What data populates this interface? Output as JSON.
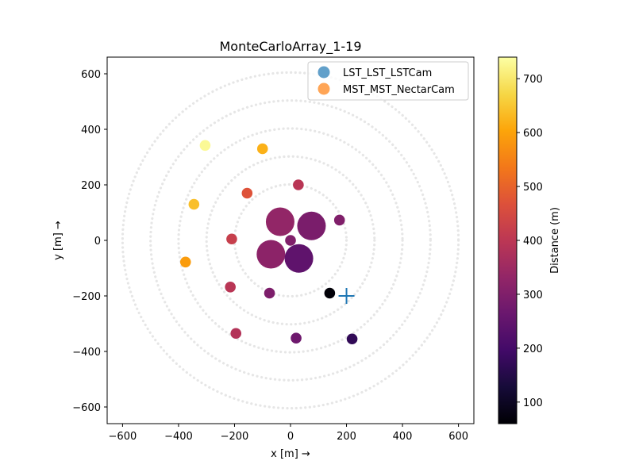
{
  "chart_data": {
    "type": "scatter",
    "title": "MonteCarloArray_1-19",
    "xlabel": "x [m]  →",
    "ylabel": "y [m]  →",
    "xlim": [
      -655,
      655
    ],
    "ylim": [
      -660,
      660
    ],
    "xticks": [
      -600,
      -400,
      -200,
      0,
      200,
      400,
      600
    ],
    "yticks": [
      -600,
      -400,
      -200,
      0,
      200,
      400,
      600
    ],
    "xtick_labels": [
      "−600",
      "−400",
      "−200",
      "0",
      "200",
      "400",
      "600"
    ],
    "ytick_labels": [
      "−600",
      "−400",
      "−200",
      "0",
      "200",
      "400",
      "600"
    ],
    "grid": false,
    "legend_position": "top-right",
    "legend": [
      {
        "label": "LST_LST_LSTCam",
        "color": "#1f77b4"
      },
      {
        "label": "MST_MST_NectarCam",
        "color": "#ff7f0e"
      }
    ],
    "reference_circles_radii": [
      200,
      300,
      400,
      500,
      600
    ],
    "marker": {
      "x": 200,
      "y": -200,
      "color": "#1f77b4"
    },
    "colorbar": {
      "label": "Distance (m)",
      "colormap": "inferno",
      "range": [
        60,
        740
      ],
      "ticks": [
        100,
        200,
        300,
        400,
        500,
        600,
        700
      ],
      "tick_labels": [
        "100",
        "200",
        "300",
        "400",
        "500",
        "600",
        "700"
      ]
    },
    "series": [
      {
        "telescope": "LST_LST_LSTCam",
        "points": [
          {
            "x": -37,
            "y": 67,
            "distance": 330
          },
          {
            "x": 75,
            "y": 52,
            "distance": 290
          },
          {
            "x": -70,
            "y": -50,
            "distance": 320
          },
          {
            "x": 30,
            "y": -65,
            "distance": 245
          }
        ]
      },
      {
        "telescope": "MST_MST_NectarCam",
        "points": [
          {
            "x": -305,
            "y": 342,
            "distance": 730
          },
          {
            "x": -100,
            "y": 330,
            "distance": 620
          },
          {
            "x": 28,
            "y": 200,
            "distance": 395
          },
          {
            "x": -155,
            "y": 170,
            "distance": 470
          },
          {
            "x": -345,
            "y": 130,
            "distance": 640
          },
          {
            "x": 175,
            "y": 73,
            "distance": 300
          },
          {
            "x": -210,
            "y": 5,
            "distance": 420
          },
          {
            "x": 0,
            "y": 0,
            "distance": 300
          },
          {
            "x": -375,
            "y": -78,
            "distance": 590
          },
          {
            "x": -215,
            "y": -168,
            "distance": 395
          },
          {
            "x": -75,
            "y": -190,
            "distance": 295
          },
          {
            "x": 140,
            "y": -190,
            "distance": 65
          },
          {
            "x": -195,
            "y": -335,
            "distance": 385
          },
          {
            "x": 20,
            "y": -352,
            "distance": 270
          },
          {
            "x": 220,
            "y": -355,
            "distance": 170
          }
        ]
      }
    ]
  }
}
